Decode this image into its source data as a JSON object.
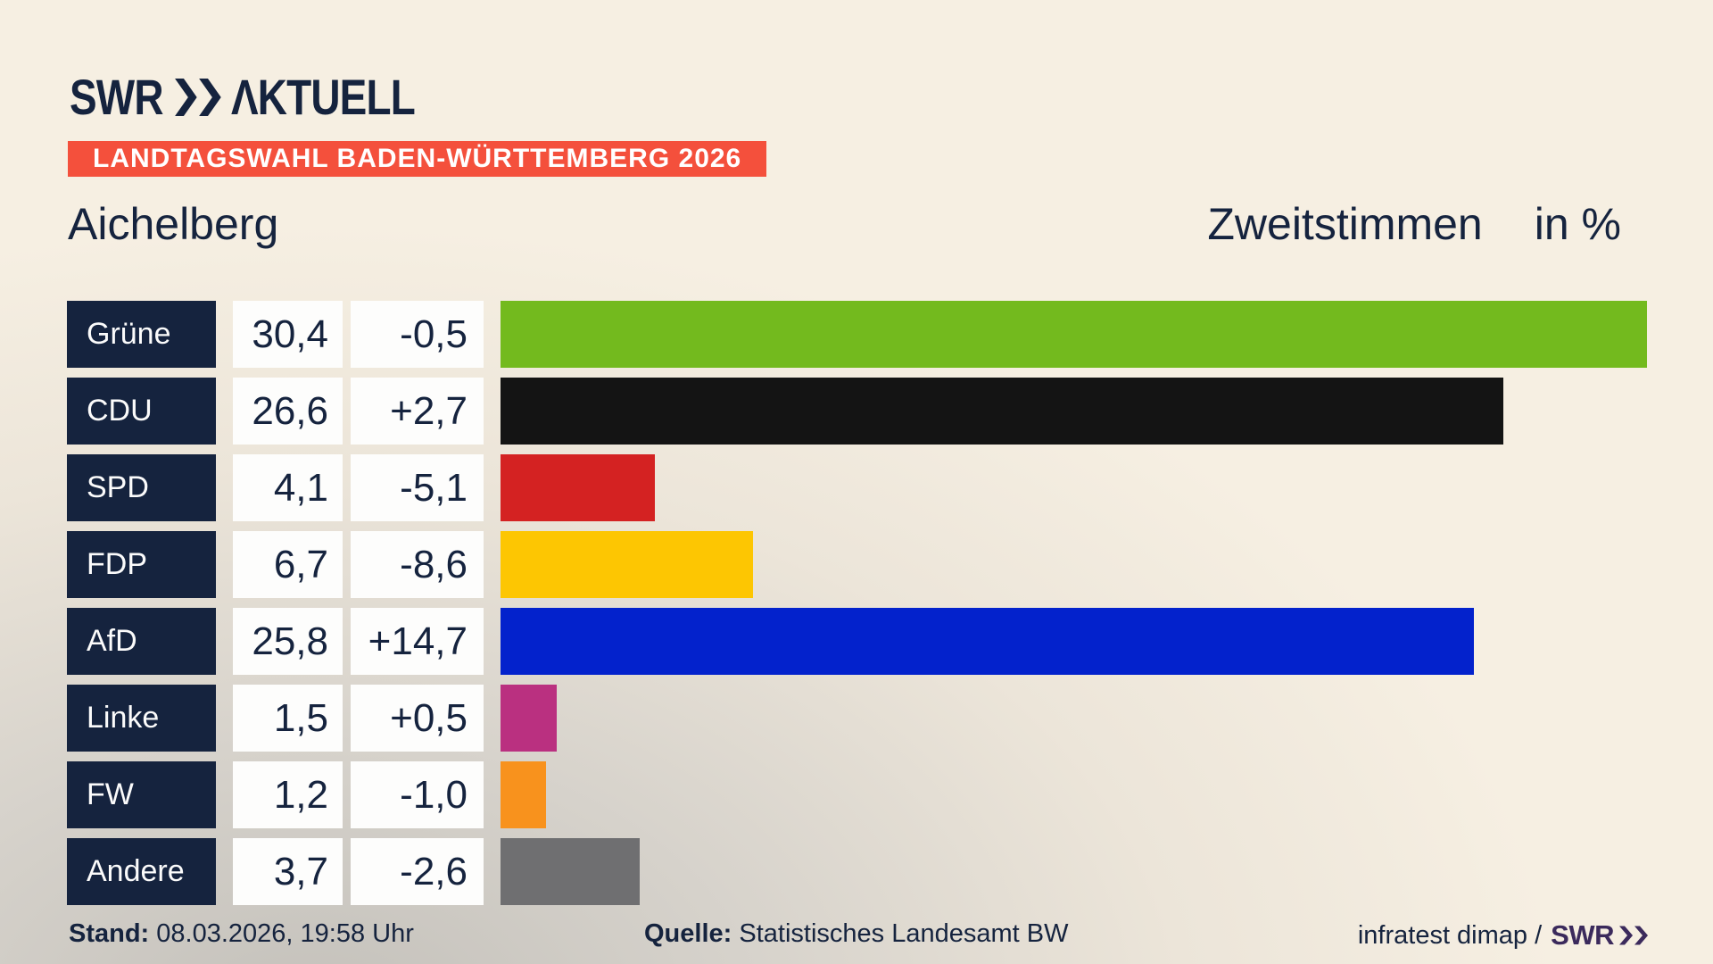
{
  "header": {
    "logo_swr": "SWR",
    "logo_aktuell": "ΛKTUELL",
    "logo_icon": "double-chevron-right-icon",
    "banner": "LANDTAGSWAHL BADEN-WÜRTTEMBERG 2026",
    "banner_color": "#f4503c",
    "municipality": "Aichelberg",
    "measure_label": "Zweitstimmen",
    "unit_label": "in %"
  },
  "chart_data": {
    "type": "bar",
    "orientation": "horizontal",
    "title": "Zweitstimmen in % – Aichelberg, Landtagswahl Baden-Württemberg 2026",
    "categories": [
      "Grüne",
      "CDU",
      "SPD",
      "FDP",
      "AfD",
      "Linke",
      "FW",
      "Andere"
    ],
    "values": [
      30.4,
      26.6,
      4.1,
      6.7,
      25.8,
      1.5,
      1.2,
      3.7
    ],
    "value_labels": [
      "30,4",
      "26,6",
      "4,1",
      "6,7",
      "25,8",
      "1,5",
      "1,2",
      "3,7"
    ],
    "changes": [
      -0.5,
      2.7,
      -5.1,
      -8.6,
      14.7,
      0.5,
      -1.0,
      -2.6
    ],
    "change_labels": [
      "-0,5",
      "+2,7",
      "-5,1",
      "-8,6",
      "+14,7",
      "+0,5",
      "-1,0",
      "-2,6"
    ],
    "bar_colors": [
      "#73ba1e",
      "#141414",
      "#d42222",
      "#fdc602",
      "#0322cc",
      "#ba3080",
      "#f8921d",
      "#6f6f71"
    ],
    "xlabel": "",
    "ylabel": "",
    "xmax": 30.4,
    "grid": false,
    "legend": false
  },
  "style_colors": {
    "navy": "#15233e",
    "label_box_bg": "#15233e",
    "value_box_bg": "#fdfdfc",
    "background_light": "#f6efe2",
    "background_dark": "#c3c0ba",
    "footer_logo_purple": "#3b2a5c"
  },
  "footer": {
    "stand_label": "Stand:",
    "stand_value": "08.03.2026, 19:58 Uhr",
    "quelle_label": "Quelle:",
    "quelle_value": "Statistisches Landesamt BW",
    "credit_text": "infratest dimap /",
    "credit_logo": "SWR",
    "credit_logo_icon": "double-chevron-right-icon"
  }
}
